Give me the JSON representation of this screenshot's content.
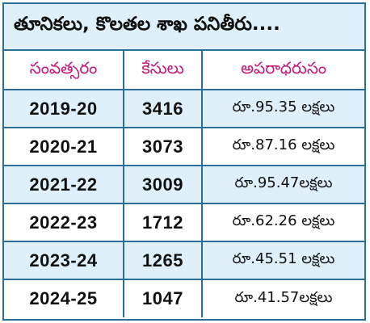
{
  "title": "తూనికలు, కొలతల శాఖ పనితీరు....",
  "columns": [
    "సంవత్సరం",
    "కేసులు",
    "అపరాధరుసం"
  ],
  "rows": [
    {
      "year": "2019-20",
      "cases": "3416",
      "amount": "రూ.95.35 లక్షలు"
    },
    {
      "year": "2020-21",
      "cases": "3073",
      "amount": "రూ.87.16 లక్షలు"
    },
    {
      "year": "2021-22",
      "cases": "3009",
      "amount": "రూ.95.47లక్షలు"
    },
    {
      "year": "2022-23",
      "cases": "1712",
      "amount": "రూ.62.26 లక్షలు"
    },
    {
      "year": "2023-24",
      "cases": "1265",
      "amount": "రూ.45.51 లక్షలు"
    },
    {
      "year": "2024-25",
      "cases": "1047",
      "amount": "రూ.41.57లక్షలు"
    }
  ],
  "colors": {
    "border": "#2a6f9a",
    "band": "#dff0fb",
    "header_text": "#c2187a",
    "body_text": "#111111"
  }
}
